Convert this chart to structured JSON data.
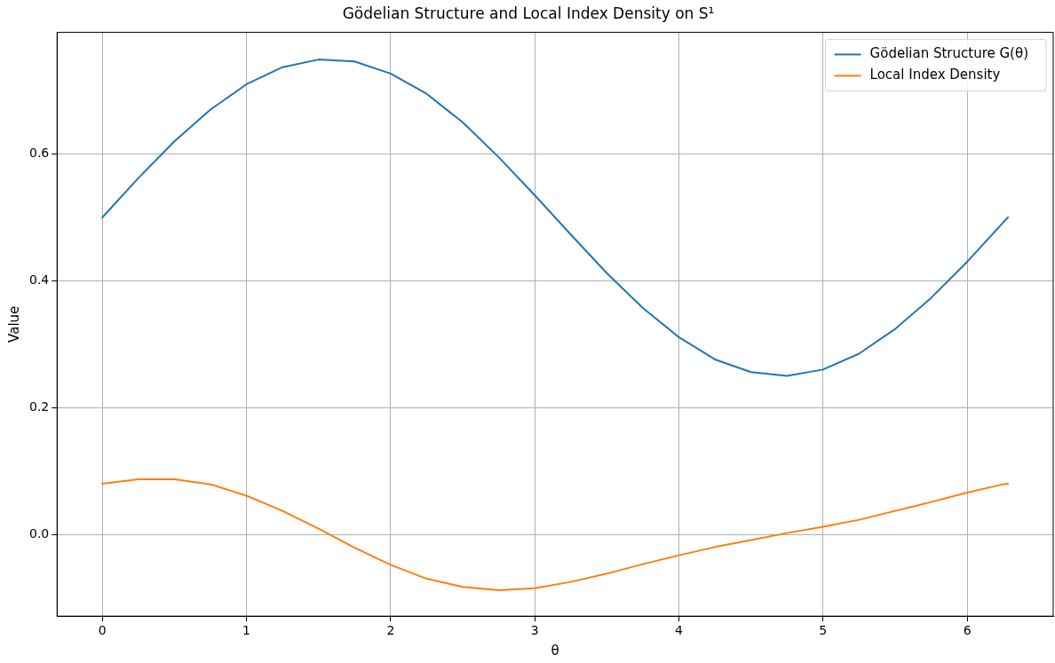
{
  "chart_data": {
    "type": "line",
    "title": "Gödelian Structure and Local Index Density on S¹",
    "xlabel": "θ",
    "ylabel": "Value",
    "x": [
      0,
      0.25,
      0.5,
      0.75,
      1,
      1.25,
      1.5,
      1.75,
      2,
      2.25,
      2.5,
      2.75,
      3,
      3.25,
      3.5,
      3.75,
      4,
      4.25,
      4.5,
      4.75,
      5,
      5.25,
      5.5,
      5.75,
      6,
      6.25,
      6.283
    ],
    "series": [
      {
        "name": "Gödelian Structure G(θ)",
        "color": "#1f77b4",
        "values": [
          0.5,
          0.562,
          0.62,
          0.67,
          0.71,
          0.737,
          0.749,
          0.746,
          0.727,
          0.695,
          0.65,
          0.595,
          0.535,
          0.473,
          0.412,
          0.357,
          0.311,
          0.276,
          0.256,
          0.25,
          0.26,
          0.285,
          0.324,
          0.373,
          0.43,
          0.492,
          0.5
        ]
      },
      {
        "name": "Local Index Density",
        "color": "#ff7f0e",
        "values": [
          0.08,
          0.087,
          0.087,
          0.079,
          0.061,
          0.037,
          0.009,
          -0.021,
          -0.048,
          -0.07,
          -0.083,
          -0.088,
          -0.085,
          -0.075,
          -0.062,
          -0.047,
          -0.033,
          -0.02,
          -0.009,
          0.002,
          0.012,
          0.023,
          0.037,
          0.051,
          0.066,
          0.079,
          0.08
        ]
      }
    ],
    "xlim": [
      -0.314,
      6.597
    ],
    "ylim": [
      -0.129,
      0.792
    ],
    "xticks": [
      0,
      1,
      2,
      3,
      4,
      5,
      6
    ],
    "yticks": [
      {
        "value": 0,
        "label": "0.0"
      },
      {
        "value": 0.2,
        "label": "0.2"
      },
      {
        "value": 0.4,
        "label": "0.4"
      },
      {
        "value": 0.6,
        "label": "0.6"
      }
    ],
    "grid": true,
    "legend": "top right",
    "marker": "none",
    "line_style": "solid"
  }
}
